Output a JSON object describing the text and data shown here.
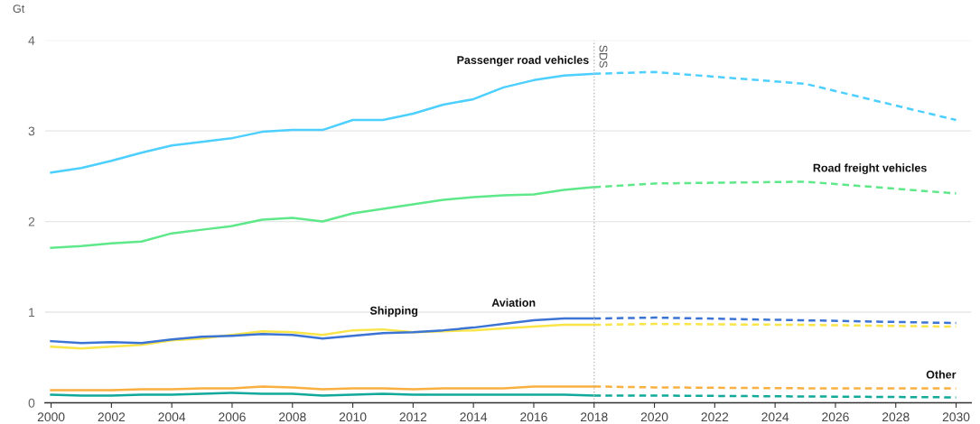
{
  "chart_data": {
    "type": "line",
    "ylabel": "Gt",
    "xlim": [
      1999.8,
      2030.5
    ],
    "ylim": [
      0,
      4
    ],
    "xticks": [
      2000,
      2002,
      2004,
      2006,
      2008,
      2010,
      2012,
      2014,
      2016,
      2018,
      2020,
      2022,
      2024,
      2026,
      2028,
      2030
    ],
    "yticks": [
      0,
      1,
      2,
      3,
      4
    ],
    "grid": "y",
    "marker": "none",
    "ref_lines": [
      {
        "axis": "x",
        "value": 2018,
        "label": "SDS",
        "color": "#bbbbbb",
        "line_style": "dotted"
      }
    ],
    "annotations": [
      {
        "text": "Passenger road vehicles",
        "x": 2018,
        "y": 3.63
      },
      {
        "text": "Road freight vehicles",
        "x": 2025,
        "y": 2.44
      },
      {
        "text": "Shipping",
        "x": 2012,
        "y": 0.81
      },
      {
        "text": "Aviation",
        "x": 2015,
        "y": 0.87
      },
      {
        "text": "Other",
        "x": 2030,
        "y": 0.16
      }
    ],
    "series": [
      {
        "color": "#4dcfff",
        "line_style": "solid",
        "x": [
          2000,
          2001,
          2002,
          2003,
          2004,
          2005,
          2006,
          2007,
          2008,
          2009,
          2010,
          2011,
          2012,
          2013,
          2014,
          2015,
          2016,
          2017,
          2018
        ],
        "values": [
          2.54,
          2.59,
          2.67,
          2.76,
          2.84,
          2.88,
          2.92,
          2.99,
          3.01,
          3.01,
          3.12,
          3.12,
          3.19,
          3.29,
          3.35,
          3.48,
          3.56,
          3.61,
          3.63
        ]
      },
      {
        "color": "#4dcfff",
        "line_style": "dashed",
        "x": [
          2018,
          2020,
          2025,
          2030
        ],
        "values": [
          3.63,
          3.65,
          3.52,
          3.12
        ]
      },
      {
        "color": "#5ee88a",
        "line_style": "solid",
        "x": [
          2000,
          2001,
          2002,
          2003,
          2004,
          2005,
          2006,
          2007,
          2008,
          2009,
          2010,
          2011,
          2012,
          2013,
          2014,
          2015,
          2016,
          2017,
          2018
        ],
        "values": [
          1.71,
          1.73,
          1.76,
          1.78,
          1.87,
          1.91,
          1.95,
          2.02,
          2.04,
          2.0,
          2.09,
          2.14,
          2.19,
          2.24,
          2.27,
          2.29,
          2.3,
          2.35,
          2.38
        ]
      },
      {
        "color": "#5ee88a",
        "line_style": "dashed",
        "x": [
          2018,
          2020,
          2025,
          2030
        ],
        "values": [
          2.38,
          2.42,
          2.44,
          2.31
        ]
      },
      {
        "color": "#f9e547",
        "line_style": "solid",
        "x": [
          2000,
          2001,
          2002,
          2003,
          2004,
          2005,
          2006,
          2007,
          2008,
          2009,
          2010,
          2011,
          2012,
          2013,
          2014,
          2015,
          2016,
          2017,
          2018
        ],
        "values": [
          0.62,
          0.6,
          0.62,
          0.64,
          0.69,
          0.71,
          0.75,
          0.79,
          0.78,
          0.75,
          0.8,
          0.81,
          0.78,
          0.79,
          0.8,
          0.82,
          0.84,
          0.86,
          0.86
        ]
      },
      {
        "color": "#f9e547",
        "line_style": "dashed",
        "x": [
          2018,
          2020,
          2025,
          2030
        ],
        "values": [
          0.86,
          0.87,
          0.86,
          0.84
        ]
      },
      {
        "color": "#3b74d4",
        "line_style": "solid",
        "x": [
          2000,
          2001,
          2002,
          2003,
          2004,
          2005,
          2006,
          2007,
          2008,
          2009,
          2010,
          2011,
          2012,
          2013,
          2014,
          2015,
          2016,
          2017,
          2018
        ],
        "values": [
          0.68,
          0.66,
          0.67,
          0.66,
          0.7,
          0.73,
          0.74,
          0.76,
          0.75,
          0.71,
          0.74,
          0.77,
          0.78,
          0.8,
          0.83,
          0.87,
          0.91,
          0.93,
          0.93
        ]
      },
      {
        "color": "#3b74d4",
        "line_style": "dashed",
        "x": [
          2018,
          2020,
          2025,
          2030
        ],
        "values": [
          0.93,
          0.94,
          0.91,
          0.88
        ]
      },
      {
        "color": "#f9b040",
        "line_style": "solid",
        "x": [
          2000,
          2001,
          2002,
          2003,
          2004,
          2005,
          2006,
          2007,
          2008,
          2009,
          2010,
          2011,
          2012,
          2013,
          2014,
          2015,
          2016,
          2017,
          2018
        ],
        "values": [
          0.14,
          0.14,
          0.14,
          0.15,
          0.15,
          0.16,
          0.16,
          0.18,
          0.17,
          0.15,
          0.16,
          0.16,
          0.15,
          0.16,
          0.16,
          0.16,
          0.18,
          0.18,
          0.18
        ]
      },
      {
        "color": "#f9b040",
        "line_style": "dashed",
        "x": [
          2018,
          2020,
          2025,
          2030
        ],
        "values": [
          0.18,
          0.17,
          0.16,
          0.16
        ]
      },
      {
        "color": "#10a99a",
        "line_style": "solid",
        "x": [
          2000,
          2001,
          2002,
          2003,
          2004,
          2005,
          2006,
          2007,
          2008,
          2009,
          2010,
          2011,
          2012,
          2013,
          2014,
          2015,
          2016,
          2017,
          2018
        ],
        "values": [
          0.09,
          0.08,
          0.08,
          0.09,
          0.09,
          0.1,
          0.11,
          0.1,
          0.1,
          0.08,
          0.09,
          0.1,
          0.09,
          0.09,
          0.09,
          0.09,
          0.09,
          0.09,
          0.08
        ]
      },
      {
        "color": "#10a99a",
        "line_style": "dashed",
        "x": [
          2018,
          2020,
          2025,
          2030
        ],
        "values": [
          0.08,
          0.08,
          0.07,
          0.06
        ]
      }
    ]
  }
}
